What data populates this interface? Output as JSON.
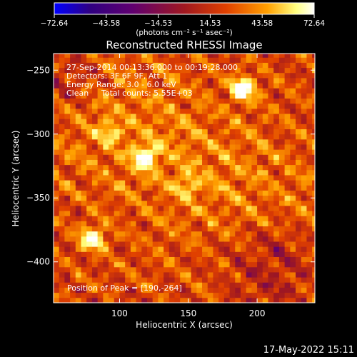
{
  "chart_data": {
    "type": "heatmap",
    "title": "Reconstructed RHESSI Image",
    "xlabel": "Heliocentric X (arcsec)",
    "ylabel": "Heliocentric Y (arcsec)",
    "xlim": [
      52,
      242
    ],
    "ylim": [
      -432,
      -237
    ],
    "x_ticks": [
      100,
      150,
      200
    ],
    "x_tick_labels": [
      "100",
      "150",
      "200"
    ],
    "y_ticks": [
      -250,
      -300,
      -350,
      -400
    ],
    "y_tick_labels": [
      "−250",
      "−300",
      "−350",
      "−400"
    ],
    "colorbar": {
      "range": [
        -72.64,
        72.64
      ],
      "ticks": [
        -72.64,
        -43.58,
        -14.53,
        14.53,
        43.58,
        72.64
      ],
      "tick_labels": [
        "−72.64",
        "−43.58",
        "−14.53",
        "14.53",
        "43.58",
        "72.64"
      ],
      "units_label": "(photons cm⁻² s⁻¹ asec⁻²)",
      "colormap": [
        "#0000ff",
        "#300080",
        "#600070",
        "#a01820",
        "#e04000",
        "#ffa000",
        "#ffff80",
        "#ffffff"
      ]
    },
    "sources": [
      {
        "x": 190,
        "y": -264,
        "peak": 72.64
      },
      {
        "x": 119,
        "y": -318,
        "peak": 65
      },
      {
        "x": 80,
        "y": -382,
        "peak": 58
      },
      {
        "x": 92,
        "y": -298,
        "peak": 30
      },
      {
        "x": 150,
        "y": -340,
        "peak": 25
      }
    ],
    "annotations": {
      "time_range": "27-Sep-2014 00:13:36.000 to 00:19:28.000",
      "detectors": "Detectors: 3F 6F 9F, Att 1",
      "energy_range": "Energy Range: 3.0 - 6.0 keV",
      "method": "Clean",
      "total_counts": "Total counts: 5.55E+03",
      "peak_position": "Position of Peak = [190,-264]"
    }
  },
  "footer": {
    "date_time": "17-May-2022 15:11"
  }
}
